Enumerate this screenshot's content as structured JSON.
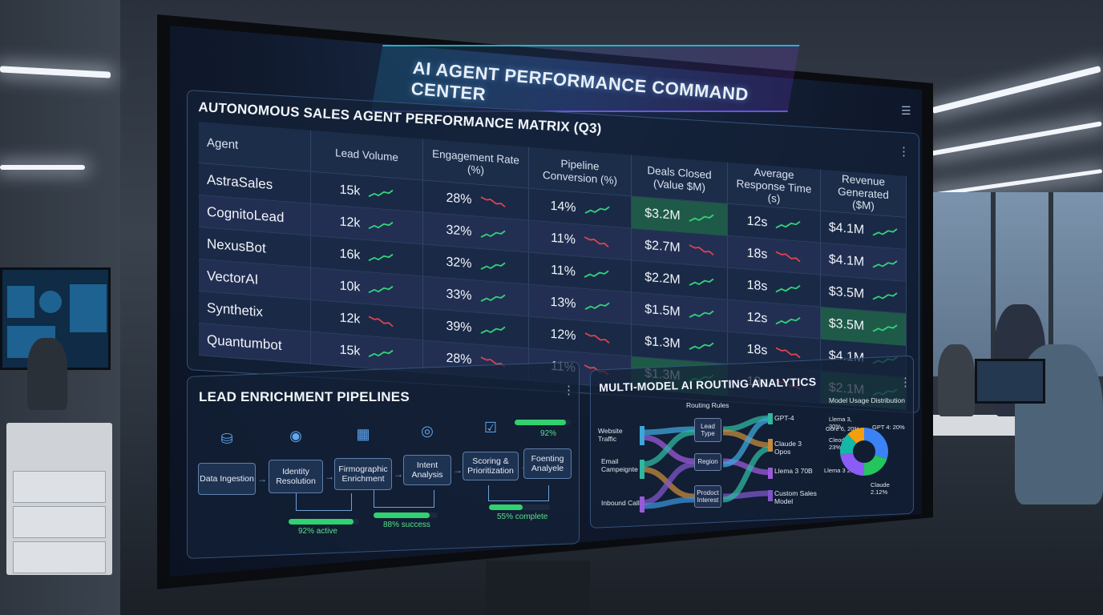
{
  "header": {
    "title": "AI AGENT PERFORMANCE COMMAND CENTER"
  },
  "matrix": {
    "title": "AUTONOMOUS SALES AGENT PERFORMANCE MATRIX (Q3)",
    "columns": [
      "Agent",
      "Lead Volume",
      "Engagement Rate (%)",
      "Pipeline Conversion (%)",
      "Deals Closed (Value $M)",
      "Average Response Time (s)",
      "Revenue Generated ($M)"
    ],
    "rows": [
      {
        "agent": "AstraSales",
        "lead": "15k",
        "eng": "28%",
        "pipe": "14%",
        "deals": "$3.2M",
        "resp": "12s",
        "rev": "$4.1M"
      },
      {
        "agent": "CognitoLead",
        "lead": "12k",
        "eng": "32%",
        "pipe": "11%",
        "deals": "$2.7M",
        "resp": "18s",
        "rev": "$4.1M"
      },
      {
        "agent": "NexusBot",
        "lead": "16k",
        "eng": "32%",
        "pipe": "11%",
        "deals": "$2.2M",
        "resp": "18s",
        "rev": "$3.5M"
      },
      {
        "agent": "VectorAI",
        "lead": "10k",
        "eng": "33%",
        "pipe": "13%",
        "deals": "$1.5M",
        "resp": "12s",
        "rev": "$3.5M"
      },
      {
        "agent": "Synthetix",
        "lead": "12k",
        "eng": "39%",
        "pipe": "12%",
        "deals": "$1.3M",
        "resp": "18s",
        "rev": "$4.1M"
      },
      {
        "agent": "Quantumbot",
        "lead": "15k",
        "eng": "28%",
        "pipe": "11%",
        "deals": "$1.3M",
        "resp": "18s",
        "rev": "$2.1M"
      }
    ]
  },
  "pipeline": {
    "title": "LEAD ENRICHMENT PIPELINES",
    "stages": [
      "Data Ingestion",
      "Identity Resolution",
      "Firmographic Enrichment",
      "Intent Analysis",
      "Scoring & Prioritization",
      "Foenting Analyele"
    ],
    "bars": [
      {
        "label": "92% active",
        "value": 0.92
      },
      {
        "label": "88% success",
        "value": 0.88
      },
      {
        "label": "55% complete",
        "value": 0.55
      },
      {
        "label": "92%",
        "value": 0.92
      }
    ]
  },
  "routing": {
    "title": "MULTI-MODEL AI ROUTING ANALYTICS",
    "rules_title": "Routing Rules",
    "sources": [
      "Website Traffic",
      "Email Campeignte",
      "Inbound Calls"
    ],
    "rules": [
      "Lead Type",
      "Region",
      "Prodoct Interest"
    ],
    "models": [
      "GPT-4",
      "Claude 3 Opos",
      "Llema 3 70B",
      "Custom Sales Model"
    ],
    "dist_title": "Model Usage Distribution",
    "legend": [
      "Llema 3, 30%",
      "Gore 6, 20%",
      "Cleode 3 23%",
      "Llema 3 20%",
      "GPT 4: 20%",
      "Claude 2.12%"
    ]
  },
  "colors": {
    "up": "#2fd37a",
    "down": "#e0444f",
    "accent": "#29c6e8",
    "highlight": "#1f5a48"
  }
}
